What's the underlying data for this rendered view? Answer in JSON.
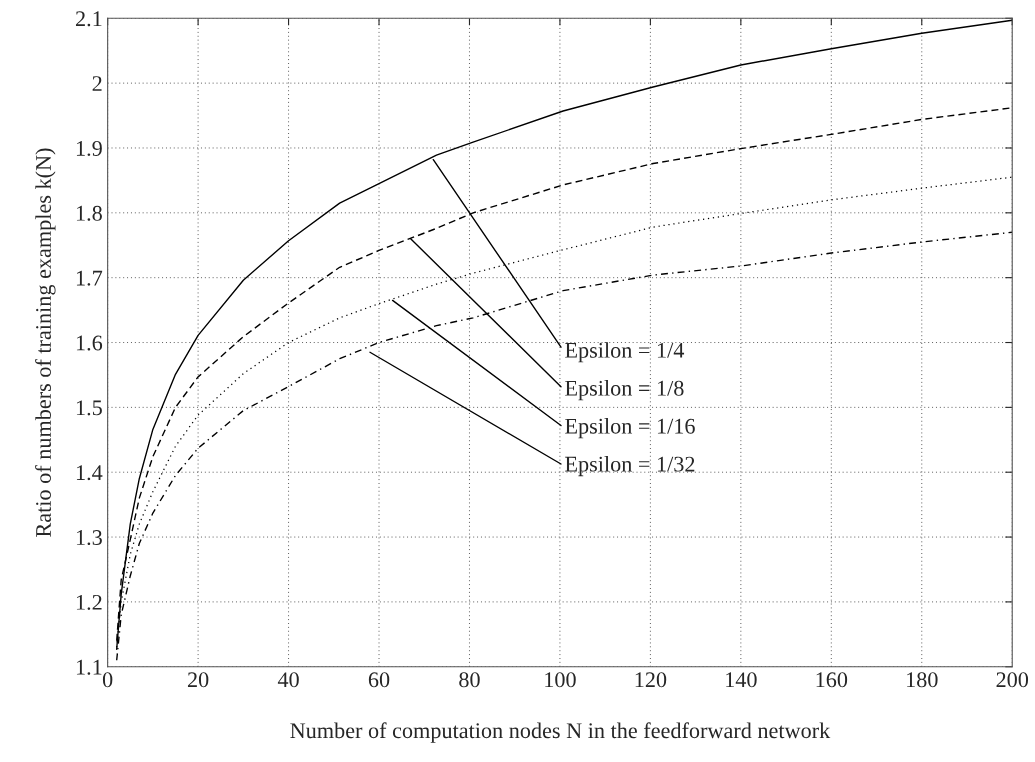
{
  "chart_data": {
    "type": "line",
    "xlabel": "Number of computation nodes N in the feedforward network",
    "ylabel": "Ratio of numbers of training examples k(N)",
    "x": [
      2,
      3,
      5,
      7,
      10,
      15,
      20,
      30,
      40,
      51.3,
      60,
      72.7,
      80.8,
      100.7,
      120.6,
      140,
      160,
      180,
      200
    ],
    "series": [
      {
        "color": "#000000",
        "line_style": "solid",
        "values": [
          1.127,
          1.212,
          1.32,
          1.39,
          1.466,
          1.551,
          1.611,
          1.696,
          1.757,
          1.815,
          1.845,
          1.889,
          1.909,
          1.957,
          1.994,
          2.028,
          2.053,
          2.077,
          2.097
        ]
      },
      {
        "color": "#000000",
        "line_style": "dashed",
        "values": [
          1.14,
          1.234,
          1.296,
          1.36,
          1.424,
          1.5,
          1.547,
          1.609,
          1.661,
          1.716,
          1.742,
          1.776,
          1.8,
          1.843,
          1.876,
          1.899,
          1.921,
          1.944,
          1.962
        ]
      },
      {
        "color": "#000000",
        "line_style": "dotted",
        "values": [
          1.13,
          1.2,
          1.273,
          1.32,
          1.37,
          1.44,
          1.488,
          1.552,
          1.6,
          1.638,
          1.66,
          1.69,
          1.707,
          1.743,
          1.778,
          1.799,
          1.82,
          1.838,
          1.855
        ]
      },
      {
        "color": "#000000",
        "line_style": "dashdot",
        "values": [
          1.11,
          1.18,
          1.24,
          1.29,
          1.337,
          1.395,
          1.437,
          1.495,
          1.532,
          1.575,
          1.6,
          1.626,
          1.638,
          1.68,
          1.704,
          1.718,
          1.738,
          1.755,
          1.77
        ]
      }
    ],
    "annotations": [
      {
        "text": "Epsilon = 1/4",
        "x": 72,
        "y": 1.882
      },
      {
        "text": "Epsilon = 1/8",
        "x": 67,
        "y": 1.76
      },
      {
        "text": "Epsilon = 1/16",
        "x": 63,
        "y": 1.665
      },
      {
        "text": "Epsilon = 1/32",
        "x": 58,
        "y": 1.585
      }
    ],
    "xlim": [
      0,
      200
    ],
    "ylim": [
      1.1,
      2.1
    ],
    "xticks": [
      0,
      20,
      40,
      60,
      80,
      100,
      120,
      140,
      160,
      180,
      200
    ],
    "yticks": [
      1.1,
      1.2,
      1.3,
      1.4,
      1.5,
      1.6,
      1.7,
      1.8,
      1.9,
      2,
      2.1
    ],
    "grid": true,
    "legend": false
  }
}
